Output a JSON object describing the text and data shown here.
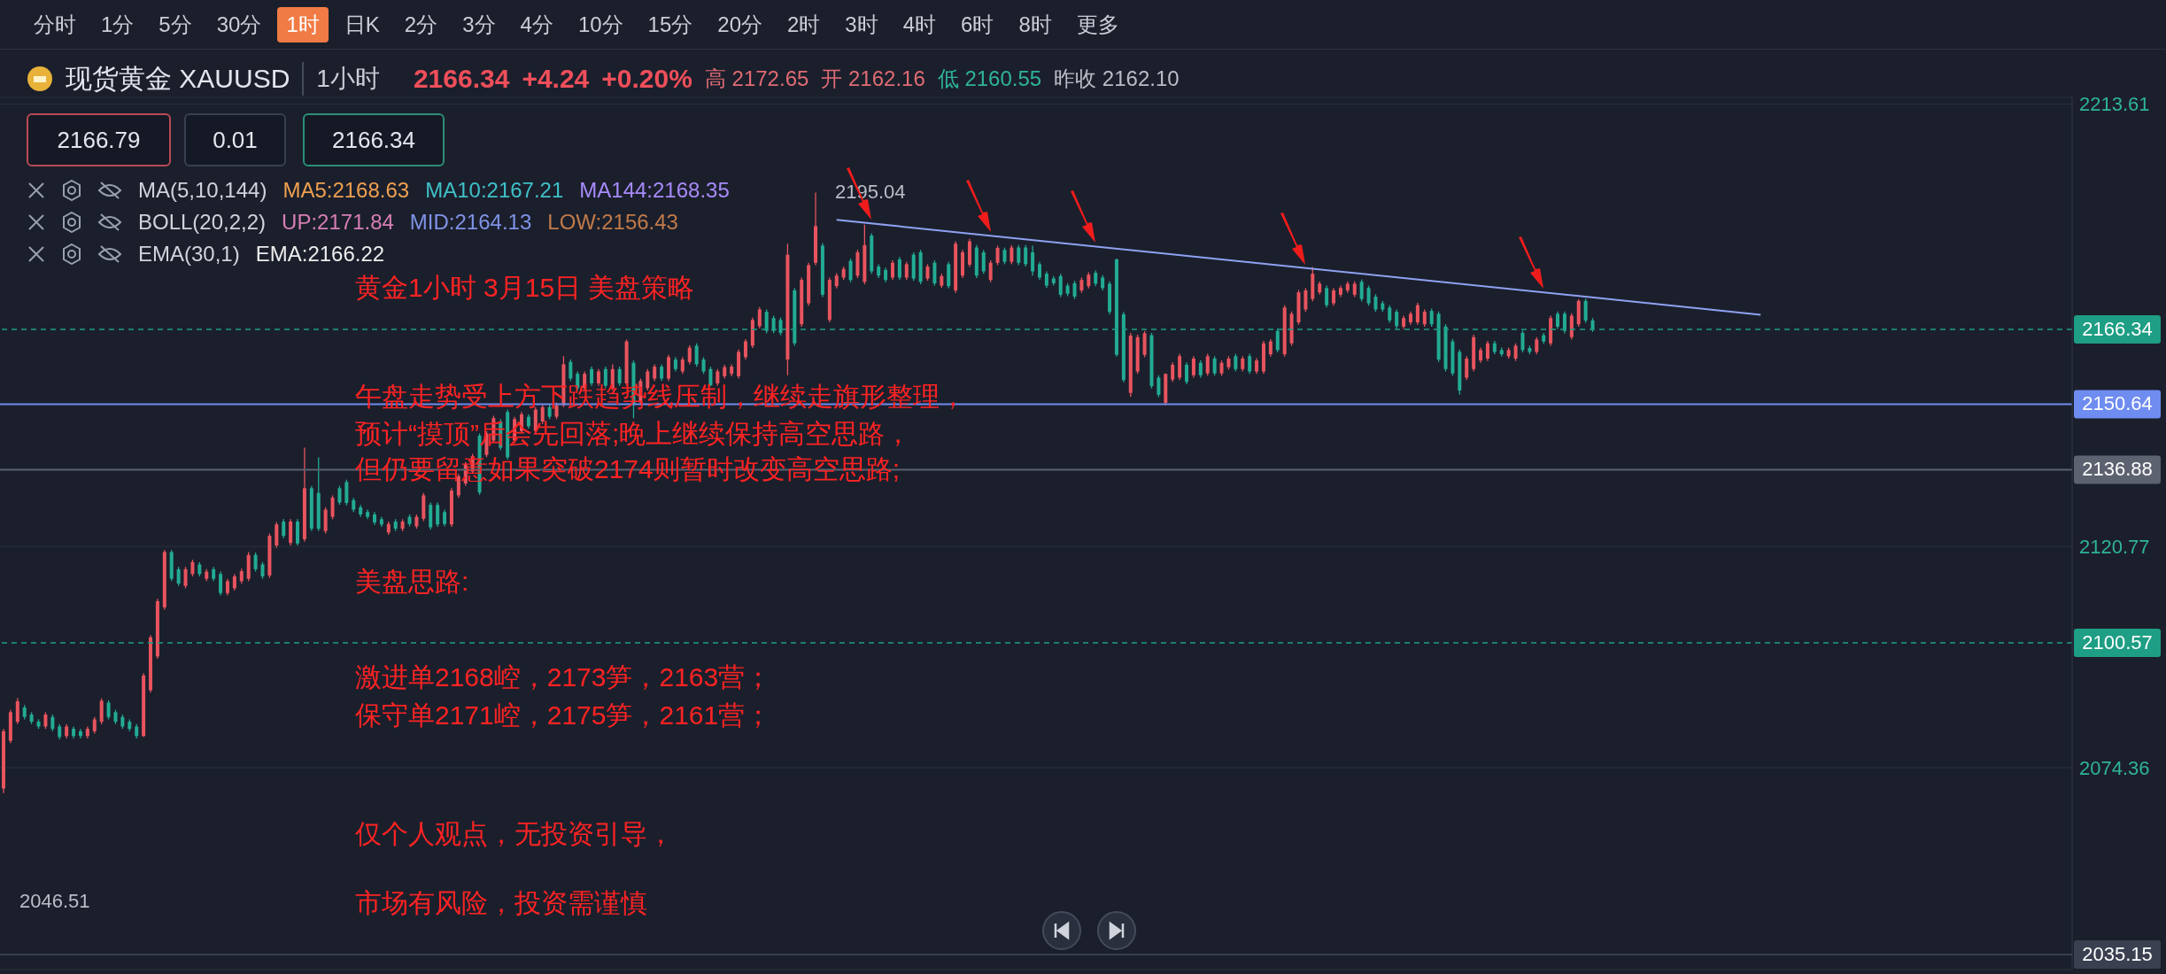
{
  "chart_data": {
    "type": "candlestick",
    "title": "现货黄金 XAUUSD",
    "subtitle": "1小时",
    "categories": [
      null,
      null,
      null,
      null,
      null,
      null,
      null,
      null,
      null,
      null,
      null,
      null,
      null,
      null,
      null,
      null,
      null,
      null,
      null,
      null,
      null,
      null,
      null,
      null,
      null,
      null,
      null,
      null,
      null,
      null,
      null,
      null,
      null,
      null,
      null,
      null,
      null,
      null,
      null,
      null,
      null,
      null,
      null,
      null,
      null,
      null,
      null,
      null,
      null,
      null,
      null,
      null,
      null,
      null,
      null,
      null,
      null,
      null,
      null,
      null,
      null,
      null,
      null,
      null,
      null,
      null,
      null,
      null,
      null,
      null,
      null,
      null,
      null,
      null,
      null,
      null,
      null,
      null,
      null,
      null,
      null,
      null,
      null,
      null,
      null,
      null,
      null,
      null,
      null,
      null,
      null,
      null,
      null,
      null,
      null,
      null,
      null,
      null,
      null,
      null,
      null,
      null,
      null,
      null,
      null,
      null,
      null,
      null,
      null,
      null,
      null,
      null,
      null,
      null,
      null,
      null,
      null,
      null,
      null,
      null,
      null,
      null,
      null,
      null,
      null,
      null,
      null,
      null,
      null,
      null,
      null,
      null,
      null,
      null,
      null,
      null,
      null,
      null,
      null,
      null,
      null,
      null,
      null,
      null,
      null,
      null,
      null,
      null,
      null,
      null,
      null,
      null,
      null,
      null,
      null,
      null,
      null,
      null,
      null,
      null,
      null,
      null,
      null,
      null,
      null,
      null,
      null,
      null,
      null,
      null,
      null,
      null,
      null,
      null,
      null,
      null,
      null,
      null,
      null,
      null,
      null,
      null,
      null,
      null,
      null,
      null,
      null,
      null,
      null,
      null,
      null,
      null,
      null,
      null,
      null,
      null,
      null,
      null,
      null,
      null,
      null,
      null,
      null,
      null,
      null,
      null,
      null,
      null,
      null,
      null,
      null,
      null,
      null,
      null,
      null,
      null,
      null,
      null,
      null,
      null,
      null,
      null,
      null,
      null,
      null,
      null,
      null,
      null,
      null,
      null,
      null,
      null,
      null,
      null,
      null,
      null,
      null,
      null,
      null,
      null,
      null,
      null,
      null,
      null,
      null,
      null,
      null,
      null,
      null,
      null,
      null,
      null,
      null,
      null,
      null,
      null,
      null,
      null,
      null,
      null,
      null,
      null,
      null,
      null,
      null,
      null,
      null,
      null,
      null,
      null,
      null,
      null,
      null,
      null,
      null,
      null,
      null,
      null,
      null,
      null,
      null,
      null,
      null,
      null,
      null,
      null,
      null,
      null,
      null,
      null,
      null,
      null,
      null,
      null,
      null,
      null
    ],
    "ohlc": [
      [
        2070,
        2082.5,
        2069,
        2082
      ],
      [
        2080,
        2086.5,
        2079.5,
        2086
      ],
      [
        2084,
        2089,
        2083.5,
        2088.3
      ],
      [
        2087,
        2087.5,
        2084.5,
        2085
      ],
      [
        2085.5,
        2086,
        2083.5,
        2084
      ],
      [
        2084,
        2084.5,
        2082.5,
        2083
      ],
      [
        2083,
        2086,
        2082.5,
        2085.5
      ],
      [
        2085,
        2085.5,
        2082,
        2082.5
      ],
      [
        2083,
        2083.5,
        2080.3,
        2080.8
      ],
      [
        2081,
        2083.5,
        2080.5,
        2083
      ],
      [
        2082.5,
        2083,
        2080.5,
        2081
      ],
      [
        2082,
        2082.5,
        2080.5,
        2081
      ],
      [
        2081,
        2083,
        2080.5,
        2082.5
      ],
      [
        2082,
        2085,
        2081.5,
        2084.5
      ],
      [
        2084,
        2088.9,
        2083.5,
        2088.4
      ],
      [
        2088,
        2088.5,
        2084.5,
        2085
      ],
      [
        2086,
        2086.5,
        2083.5,
        2084
      ],
      [
        2085,
        2085.5,
        2082.5,
        2083
      ],
      [
        2084,
        2084.5,
        2082,
        2082.5
      ],
      [
        2083,
        2083.5,
        2080.5,
        2081
      ],
      [
        2081,
        2094.2,
        2080.8,
        2093.7
      ],
      [
        2090.6,
        2102.2,
        2090.1,
        2101.7
      ],
      [
        2097.7,
        2109.8,
        2097.2,
        2109.3
      ],
      [
        2108,
        2120,
        2107.5,
        2119.6
      ],
      [
        2119.6,
        2120,
        2113.5,
        2114
      ],
      [
        2116,
        2116.5,
        2112.5,
        2113
      ],
      [
        2112.5,
        2116.5,
        2112,
        2116
      ],
      [
        2115,
        2118,
        2114.5,
        2117.5
      ],
      [
        2117,
        2117.5,
        2114.5,
        2115
      ],
      [
        2114,
        2116,
        2113.5,
        2115.5
      ],
      [
        2116,
        2116.5,
        2113.5,
        2114
      ],
      [
        2115,
        2115.5,
        2110.5,
        2111
      ],
      [
        2111,
        2114,
        2110.5,
        2113.5
      ],
      [
        2112,
        2115,
        2111.5,
        2114.5
      ],
      [
        2113.5,
        2116.1,
        2113,
        2115.6
      ],
      [
        2114,
        2119.6,
        2113.5,
        2119
      ],
      [
        2119,
        2119.5,
        2115.5,
        2116
      ],
      [
        2117,
        2117.5,
        2114,
        2114.5
      ],
      [
        2114.7,
        2123.5,
        2114.2,
        2123
      ],
      [
        2121,
        2125.9,
        2120.5,
        2125.4
      ],
      [
        2126,
        2126.5,
        2122.5,
        2123
      ],
      [
        2121.5,
        2126.5,
        2121,
        2126
      ],
      [
        2126,
        2126.5,
        2121,
        2121.4
      ],
      [
        2122.3,
        2141.5,
        2121.8,
        2133
      ],
      [
        2133,
        2133.5,
        2124,
        2124.5
      ],
      [
        2132,
        2139.5,
        2124,
        2124.5
      ],
      [
        2124,
        2129,
        2123.5,
        2128.5
      ],
      [
        2127,
        2131.5,
        2126.5,
        2131
      ],
      [
        2133,
        2133.5,
        2129.5,
        2130
      ],
      [
        2134.3,
        2134.8,
        2129.4,
        2129.9
      ],
      [
        2130.5,
        2131,
        2128,
        2128.5
      ],
      [
        2129,
        2129.5,
        2127,
        2127.5
      ],
      [
        2128,
        2128.5,
        2126.5,
        2127
      ],
      [
        2127.5,
        2128,
        2125.3,
        2125.8
      ],
      [
        2126.5,
        2127,
        2124.9,
        2125.4
      ],
      [
        2123.7,
        2126,
        2123.2,
        2125.5
      ],
      [
        2126,
        2126.5,
        2124,
        2124.5
      ],
      [
        2124.5,
        2126.5,
        2124,
        2126
      ],
      [
        2127,
        2127.5,
        2125,
        2125.5
      ],
      [
        2125,
        2127.5,
        2124.5,
        2127
      ],
      [
        2126.6,
        2132,
        2126.1,
        2131.5
      ],
      [
        2129.5,
        2130,
        2124.3,
        2124.8
      ],
      [
        2129.5,
        2130,
        2124.9,
        2125.4
      ],
      [
        2128,
        2128.5,
        2125,
        2125.5
      ],
      [
        2125.4,
        2133,
        2124.9,
        2132.5
      ],
      [
        2131.5,
        2136,
        2131,
        2135.5
      ],
      [
        2134,
        2138.5,
        2133.5,
        2138
      ],
      [
        2136.5,
        2140.2,
        2136,
        2139.7
      ],
      [
        2144,
        2144.5,
        2131.6,
        2132.1
      ],
      [
        2140,
        2145,
        2139.5,
        2144.5
      ],
      [
        2143,
        2148.2,
        2142.5,
        2147.7
      ],
      [
        2147,
        2147.5,
        2141,
        2141.5
      ],
      [
        2149,
        2149.5,
        2139,
        2139.5
      ],
      [
        2143,
        2148,
        2142.5,
        2147.5
      ],
      [
        2145,
        2149,
        2144.5,
        2148.5
      ],
      [
        2148,
        2148.5,
        2145.5,
        2146
      ],
      [
        2145,
        2150,
        2144.5,
        2149.5
      ],
      [
        2147,
        2150.5,
        2146.5,
        2150
      ],
      [
        2150,
        2150.5,
        2147.5,
        2148
      ],
      [
        2148,
        2151,
        2147.5,
        2150.4
      ],
      [
        2150.4,
        2160.7,
        2150,
        2159
      ],
      [
        2159.5,
        2160,
        2155.5,
        2156
      ],
      [
        2157,
        2157.5,
        2153.5,
        2154
      ],
      [
        2154,
        2157.5,
        2153.5,
        2157
      ],
      [
        2158,
        2158.5,
        2154.5,
        2155
      ],
      [
        2155,
        2158,
        2154.5,
        2157.5
      ],
      [
        2158,
        2158.5,
        2154,
        2154.5
      ],
      [
        2154,
        2159,
        2153.5,
        2158
      ],
      [
        2158,
        2158.5,
        2154.5,
        2155
      ],
      [
        2155,
        2164.2,
        2154.5,
        2163.8
      ],
      [
        2159.3,
        2159.8,
        2147.7,
        2150.5
      ],
      [
        2151,
        2156,
        2150.5,
        2155.5
      ],
      [
        2154,
        2158,
        2153.5,
        2157.5
      ],
      [
        2156,
        2159,
        2155.5,
        2158.5
      ],
      [
        2158.5,
        2159,
        2155.5,
        2156
      ],
      [
        2156,
        2161,
        2155.5,
        2160.5
      ],
      [
        2160,
        2160.5,
        2157.5,
        2158
      ],
      [
        2157.5,
        2160.5,
        2157,
        2160
      ],
      [
        2159.5,
        2163,
        2159,
        2162.5
      ],
      [
        2162.9,
        2163.4,
        2158.5,
        2159
      ],
      [
        2160,
        2160.5,
        2157,
        2157.5
      ],
      [
        2158,
        2158.5,
        2154.4,
        2154.6
      ],
      [
        2155,
        2158,
        2154.5,
        2157.5
      ],
      [
        2156.5,
        2158.9,
        2156,
        2158.4
      ],
      [
        2157,
        2159,
        2156.5,
        2158.5
      ],
      [
        2156.5,
        2162.1,
        2156,
        2161.6
      ],
      [
        2160.5,
        2164.3,
        2160,
        2163.8
      ],
      [
        2162.9,
        2168.8,
        2162.4,
        2168.3
      ],
      [
        2167,
        2171,
        2166.5,
        2170.5
      ],
      [
        2170,
        2170.5,
        2165.5,
        2166
      ],
      [
        2168.7,
        2169.2,
        2165.5,
        2166
      ],
      [
        2168.3,
        2168.8,
        2165.1,
        2165.6
      ],
      [
        2160,
        2184.3,
        2156.7,
        2182
      ],
      [
        2174.5,
        2175,
        2162.9,
        2163.4
      ],
      [
        2167.4,
        2177.2,
        2166.9,
        2176.7
      ],
      [
        2171.8,
        2180.3,
        2171.3,
        2179.8
      ],
      [
        2180.3,
        2195.04,
        2179.8,
        2188
      ],
      [
        2183.9,
        2184.4,
        2173.1,
        2173.6
      ],
      [
        2168.3,
        2177.2,
        2167.8,
        2176.7
      ],
      [
        2175.4,
        2178.1,
        2174.9,
        2177.6
      ],
      [
        2177.2,
        2179.5,
        2176.7,
        2179
      ],
      [
        2180.7,
        2181.2,
        2176.2,
        2176.7
      ],
      [
        2177.6,
        2183,
        2177.1,
        2182.5
      ],
      [
        2176.3,
        2188.3,
        2175.8,
        2184
      ],
      [
        2186,
        2186.5,
        2178,
        2178.5
      ],
      [
        2179.5,
        2180,
        2177.1,
        2177.6
      ],
      [
        2178.8,
        2179.3,
        2176.2,
        2176.7
      ],
      [
        2177.2,
        2180.8,
        2176.7,
        2180.3
      ],
      [
        2181,
        2181.5,
        2176.7,
        2177.2
      ],
      [
        2177.2,
        2180.5,
        2176.7,
        2180
      ],
      [
        2182,
        2182.5,
        2176.5,
        2177
      ],
      [
        2182.5,
        2183,
        2175.8,
        2176.3
      ],
      [
        2177,
        2180,
        2176.5,
        2179.5
      ],
      [
        2180.3,
        2180.8,
        2175.5,
        2176
      ],
      [
        2175.5,
        2178,
        2175,
        2177.5
      ],
      [
        2180,
        2180.5,
        2174.9,
        2175.4
      ],
      [
        2174.5,
        2184.8,
        2174,
        2184.3
      ],
      [
        2177.6,
        2183,
        2177.1,
        2182.5
      ],
      [
        2179.9,
        2185.3,
        2179.4,
        2184.8
      ],
      [
        2183.5,
        2184,
        2177.1,
        2177.6
      ],
      [
        2182.5,
        2183,
        2178,
        2178.5
      ],
      [
        2176.7,
        2180.8,
        2176.2,
        2180.3
      ],
      [
        2180.3,
        2183.9,
        2179.8,
        2183.4
      ],
      [
        2183,
        2183.5,
        2180,
        2180.5
      ],
      [
        2180.5,
        2184,
        2180,
        2183.5
      ],
      [
        2183.5,
        2184,
        2179.8,
        2180.3
      ],
      [
        2183.5,
        2184,
        2179.5,
        2180
      ],
      [
        2182.5,
        2183.9,
        2177.6,
        2178.5
      ],
      [
        2180,
        2180.5,
        2176.7,
        2177.2
      ],
      [
        2178,
        2178.5,
        2175,
        2175.5
      ],
      [
        2177,
        2177.5,
        2175.5,
        2176
      ],
      [
        2177.5,
        2178,
        2173.1,
        2173.6
      ],
      [
        2175.5,
        2176,
        2173.3,
        2173.8
      ],
      [
        2176,
        2176.5,
        2172.7,
        2173.2
      ],
      [
        2174.5,
        2177.2,
        2174,
        2176.7
      ],
      [
        2175.4,
        2178.3,
        2174.9,
        2177.8
      ],
      [
        2178.2,
        2178.7,
        2175.4,
        2175.9
      ],
      [
        2177.2,
        2177.7,
        2174.5,
        2175
      ],
      [
        2175.9,
        2176.4,
        2169.5,
        2170
      ],
      [
        2181,
        2181.2,
        2160.6,
        2161
      ],
      [
        2169.5,
        2170,
        2155.2,
        2155.7
      ],
      [
        2153,
        2165.6,
        2152.2,
        2165
      ],
      [
        2157.5,
        2165.2,
        2157,
        2164.7
      ],
      [
        2161,
        2166,
        2160.5,
        2165.5
      ],
      [
        2165.1,
        2165.6,
        2153.9,
        2154.4
      ],
      [
        2156.2,
        2156.7,
        2152.1,
        2152.6
      ],
      [
        2150.9,
        2157.1,
        2150.4,
        2157
      ],
      [
        2155.8,
        2159.4,
        2155.3,
        2158.9
      ],
      [
        2156.2,
        2161.2,
        2155.7,
        2160.7
      ],
      [
        2158.9,
        2159.4,
        2154.8,
        2155.3
      ],
      [
        2156.7,
        2160.7,
        2156.2,
        2160.2
      ],
      [
        2159.3,
        2159.8,
        2156.2,
        2156.7
      ],
      [
        2157.1,
        2161.2,
        2156.6,
        2160.7
      ],
      [
        2160.2,
        2160.7,
        2156.6,
        2157.1
      ],
      [
        2157.1,
        2159.8,
        2156.6,
        2159.3
      ],
      [
        2158.4,
        2160.7,
        2157.9,
        2160.2
      ],
      [
        2160.7,
        2161.2,
        2157.5,
        2158
      ],
      [
        2158,
        2160.7,
        2157.5,
        2160.2
      ],
      [
        2160.7,
        2161.2,
        2157,
        2157.5
      ],
      [
        2157.5,
        2160.3,
        2157,
        2159.8
      ],
      [
        2157.5,
        2163.9,
        2157,
        2163.4
      ],
      [
        2161.1,
        2164.3,
        2160.6,
        2163.8
      ],
      [
        2166,
        2166.5,
        2161.5,
        2162
      ],
      [
        2161.1,
        2171.4,
        2160.6,
        2170.9
      ],
      [
        2163.4,
        2170.1,
        2162.9,
        2169.6
      ],
      [
        2167.8,
        2174.6,
        2167.3,
        2174.1
      ],
      [
        2170.5,
        2175,
        2170,
        2174.5
      ],
      [
        2172.7,
        2179.4,
        2172.2,
        2178
      ],
      [
        2174.1,
        2176.4,
        2173.6,
        2175.9
      ],
      [
        2175,
        2175.5,
        2170.9,
        2171.4
      ],
      [
        2171.8,
        2175,
        2171.3,
        2174.5
      ],
      [
        2173.6,
        2175.5,
        2173.1,
        2175
      ],
      [
        2174.5,
        2176.4,
        2174,
        2175.9
      ],
      [
        2173.6,
        2176.4,
        2173.1,
        2175.9
      ],
      [
        2176.3,
        2176.8,
        2172.2,
        2172.7
      ],
      [
        2175,
        2175.5,
        2171.3,
        2171.8
      ],
      [
        2173.2,
        2173.7,
        2170,
        2170.5
      ],
      [
        2171.8,
        2172.3,
        2170,
        2170.5
      ],
      [
        2170.9,
        2171.4,
        2167.7,
        2168.2
      ],
      [
        2170,
        2170.5,
        2166.5,
        2167
      ],
      [
        2166.9,
        2169.2,
        2166.4,
        2168.7
      ],
      [
        2167.8,
        2170.1,
        2167.3,
        2169.6
      ],
      [
        2167.8,
        2171.9,
        2167.3,
        2171.4
      ],
      [
        2167.4,
        2170.5,
        2166.9,
        2170
      ],
      [
        2170.2,
        2170.7,
        2166.9,
        2167.4
      ],
      [
        2169.6,
        2170.1,
        2159.5,
        2160
      ],
      [
        2166.9,
        2167.4,
        2157.5,
        2158
      ],
      [
        2163.8,
        2164.3,
        2156.6,
        2157.1
      ],
      [
        2161.6,
        2162.1,
        2152.6,
        2153.5
      ],
      [
        2156.2,
        2160.7,
        2155.7,
        2160.2
      ],
      [
        2158,
        2165.2,
        2157.5,
        2164.7
      ],
      [
        2159.8,
        2162.5,
        2159.3,
        2162
      ],
      [
        2160.2,
        2163.9,
        2159.7,
        2163.4
      ],
      [
        2163.4,
        2163.9,
        2161.1,
        2161.6
      ],
      [
        2162,
        2162.5,
        2160.6,
        2161.1
      ],
      [
        2160.7,
        2162.5,
        2160.2,
        2162
      ],
      [
        2160.2,
        2163.4,
        2159.7,
        2162.9
      ],
      [
        2165.6,
        2166.1,
        2161.5,
        2162
      ],
      [
        2162.4,
        2162.9,
        2161.1,
        2161.6
      ],
      [
        2161.6,
        2164.7,
        2161.1,
        2164.2
      ],
      [
        2165.1,
        2165.6,
        2163.3,
        2163.8
      ],
      [
        2163.4,
        2169.2,
        2162.9,
        2168.7
      ],
      [
        2169.6,
        2170.1,
        2166.4,
        2166.9
      ],
      [
        2169.6,
        2170.1,
        2165.5,
        2166
      ],
      [
        2164.7,
        2169.7,
        2164.2,
        2169.2
      ],
      [
        2167.4,
        2172.65,
        2166.9,
        2172.3
      ],
      [
        2172.3,
        2172.8,
        2167.7,
        2168.2
      ],
      [
        2168.2,
        2168.7,
        2165.8,
        2166.34
      ],
      null,
      null,
      null,
      null,
      null,
      null,
      null,
      null,
      null,
      null,
      null,
      null,
      null,
      null,
      null,
      null,
      null,
      null,
      null,
      null,
      null,
      null,
      null,
      null,
      null,
      null,
      null,
      null,
      null,
      null,
      null,
      null,
      null,
      null,
      null,
      null,
      null,
      null,
      null,
      null,
      null,
      null,
      null,
      null,
      null,
      null,
      null,
      null,
      null,
      null,
      null,
      null,
      null,
      null,
      null,
      null,
      null,
      null,
      null,
      null,
      null,
      null,
      null,
      null,
      null,
      null,
      null,
      null
    ],
    "series": [
      {
        "type": "line",
        "color": "#8fa2f2",
        "values": [
          null,
          null,
          null,
          null,
          null,
          null,
          null,
          null,
          null,
          null,
          null,
          null,
          null,
          null,
          null,
          null,
          null,
          null,
          null,
          null,
          null,
          null,
          null,
          null,
          null,
          null,
          null,
          null,
          null,
          null,
          null,
          null,
          null,
          null,
          null,
          null,
          null,
          null,
          null,
          null,
          null,
          null,
          null,
          null,
          null,
          null,
          null,
          null,
          null,
          null,
          null,
          null,
          null,
          null,
          null,
          null,
          null,
          null,
          null,
          null,
          null,
          null,
          null,
          null,
          null,
          null,
          null,
          null,
          null,
          null,
          null,
          null,
          null,
          null,
          null,
          null,
          null,
          null,
          null,
          null,
          null,
          null,
          null,
          null,
          null,
          null,
          null,
          null,
          null,
          null,
          null,
          null,
          null,
          null,
          null,
          null,
          null,
          null,
          null,
          null,
          null,
          null,
          null,
          null,
          null,
          null,
          null,
          null,
          null,
          null,
          null,
          null,
          null,
          null,
          null,
          null,
          null,
          null,
          null,
          2189.3,
          null,
          null,
          null,
          null,
          null,
          null,
          null,
          null,
          null,
          null,
          null,
          null,
          null,
          null,
          null,
          null,
          null,
          null,
          null,
          null,
          null,
          null,
          null,
          null,
          null,
          null,
          null,
          null,
          null,
          null,
          null,
          null,
          null,
          null,
          null,
          null,
          null,
          null,
          null,
          null,
          null,
          null,
          null,
          null,
          null,
          null,
          null,
          null,
          null,
          null,
          null,
          null,
          null,
          null,
          null,
          null,
          null,
          null,
          null,
          null,
          null,
          null,
          null,
          null,
          null,
          null,
          null,
          null,
          null,
          null,
          null,
          null,
          null,
          null,
          null,
          null,
          null,
          null,
          null,
          null,
          null,
          null,
          null,
          null,
          null,
          null,
          null,
          null,
          null,
          null,
          null,
          null,
          null,
          null,
          null,
          null,
          null,
          null,
          null,
          null,
          null,
          null,
          null,
          null,
          null,
          null,
          null,
          null,
          null,
          null,
          null,
          null,
          null,
          null,
          null,
          null,
          null,
          null,
          null,
          null,
          null,
          null,
          null,
          null,
          null,
          null,
          null,
          null,
          null,
          null,
          null,
          2169.4,
          null,
          null,
          null,
          null,
          null,
          null,
          null,
          null,
          null,
          null,
          null,
          null,
          null,
          null,
          null,
          null,
          null,
          null,
          null,
          null,
          null,
          null,
          null,
          null,
          null,
          null,
          null,
          null,
          null,
          null,
          null,
          null,
          null,
          null,
          null,
          null,
          null,
          null,
          null,
          null,
          null,
          null,
          null,
          null
        ]
      }
    ],
    "ylim": [
      2032,
      2215
    ],
    "yticks": [
      2074.36,
      2120.77,
      2213.61
    ],
    "grid": "y",
    "tick_labels": "y",
    "ref_lines": [
      {
        "axis": "y",
        "value": 2166.34,
        "label": "2166.34",
        "color": "#1e9e84",
        "line_style": "dashed"
      },
      {
        "axis": "y",
        "value": 2150.64,
        "label": "2150.64",
        "color": "#6f8cf0",
        "line_style": "solid"
      },
      {
        "axis": "y",
        "value": 2136.88,
        "label": "2136.88",
        "color": "#5d6270",
        "line_style": "solid"
      },
      {
        "axis": "y",
        "value": 2100.57,
        "label": "2100.57",
        "color": "#1e9e84",
        "line_style": "dashed"
      },
      {
        "axis": "y",
        "value": 2035.15,
        "label": "2035.15",
        "color": "#3a4050",
        "line_style": "solid"
      }
    ],
    "annotations": [
      "分时",
      "1分",
      "5分",
      "30分",
      "1时",
      "日K",
      "2分",
      "3分",
      "4分",
      "10分",
      "15分",
      "20分",
      "2时",
      "3时",
      "4时",
      "6时",
      "8时",
      "更多",
      "2166.34",
      "+4.24",
      "+0.20%",
      "高 2172.65",
      "开 2162.16",
      "低 2160.55",
      "昨收 2162.10",
      "2166.79",
      "0.01",
      "2166.34",
      "MA(5,10,144)",
      "MA5:2168.63",
      "MA10:2167.21",
      "MA144:2168.35",
      "BOLL(20,2,2)",
      "UP:2171.84",
      "MID:2164.13",
      "LOW:2156.43",
      "EMA(30,1)",
      "EMA:2166.22",
      "黄金1小时 3月15日 美盘策略",
      "午盘走势受上方下跌趋势线压制，继续走旗形整理，",
      "预计“摸顶”后会先回落;晚上继续保持高空思路，",
      "但仍要留意如果突破2174则暂时改变高空思路;",
      "美盘思路:",
      "激进单2168崆，2173笋，2163营；",
      "保守单2171崆，2175笋，2161营；",
      "仅个人观点，无投资引导，",
      "市场有风险，投资需谨慎",
      "2195.04",
      "2046.51"
    ]
  }
}
